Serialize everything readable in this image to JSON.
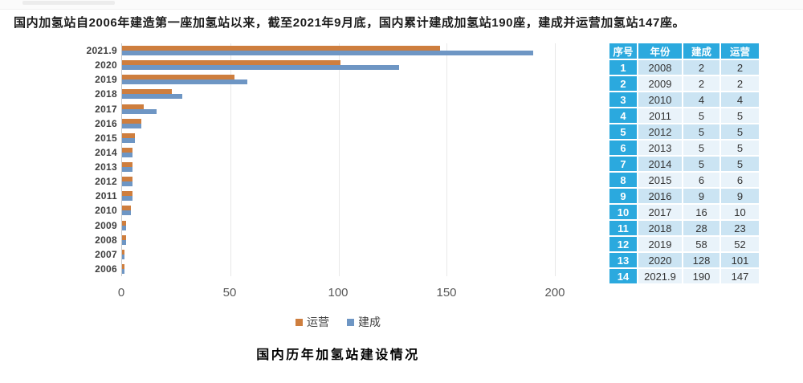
{
  "page": {
    "headline": "国内加氢站自2006年建造第一座加氢站以来，截至2021年9月底，国内累计建成加氢站190座，建成并运营加氢站147座。",
    "caption": "国内历年加氢站建设情况"
  },
  "colors": {
    "operating_orange": "#ce7e3e",
    "built_blue": "#6e96c4",
    "table_header_cyan": "#2ba9de",
    "table_row_odd": "#cbe4f3",
    "table_row_even": "#e9f3fa",
    "grid_line": "#e8e8e8"
  },
  "chart_data": {
    "type": "bar",
    "orientation": "horizontal",
    "title": "国内历年加氢站建设情况",
    "categories": [
      "2021.9",
      "2020",
      "2019",
      "2018",
      "2017",
      "2016",
      "2015",
      "2014",
      "2013",
      "2012",
      "2011",
      "2010",
      "2009",
      "2008",
      "2007",
      "2006"
    ],
    "series": [
      {
        "name": "运营",
        "color": "#ce7e3e",
        "values": [
          147,
          101,
          52,
          23,
          10,
          9,
          6,
          5,
          5,
          5,
          5,
          4,
          2,
          2,
          1,
          1
        ]
      },
      {
        "name": "建成",
        "color": "#6e96c4",
        "values": [
          190,
          128,
          58,
          28,
          16,
          9,
          6,
          5,
          5,
          5,
          5,
          4,
          2,
          2,
          1,
          1
        ]
      }
    ],
    "xlim": [
      0,
      200
    ],
    "xticks": [
      0,
      50,
      100,
      150,
      200
    ],
    "grid": true,
    "legend_position": "bottom",
    "legend_entries": [
      "运营",
      "建成"
    ]
  },
  "table": {
    "headers": [
      "序号",
      "年份",
      "建成",
      "运营"
    ],
    "rows": [
      [
        "1",
        "2008",
        "2",
        "2"
      ],
      [
        "2",
        "2009",
        "2",
        "2"
      ],
      [
        "3",
        "2010",
        "4",
        "4"
      ],
      [
        "4",
        "2011",
        "5",
        "5"
      ],
      [
        "5",
        "2012",
        "5",
        "5"
      ],
      [
        "6",
        "2013",
        "5",
        "5"
      ],
      [
        "7",
        "2014",
        "5",
        "5"
      ],
      [
        "8",
        "2015",
        "6",
        "6"
      ],
      [
        "9",
        "2016",
        "9",
        "9"
      ],
      [
        "10",
        "2017",
        "16",
        "10"
      ],
      [
        "11",
        "2018",
        "28",
        "23"
      ],
      [
        "12",
        "2019",
        "58",
        "52"
      ],
      [
        "13",
        "2020",
        "128",
        "101"
      ],
      [
        "14",
        "2021.9",
        "190",
        "147"
      ]
    ]
  }
}
